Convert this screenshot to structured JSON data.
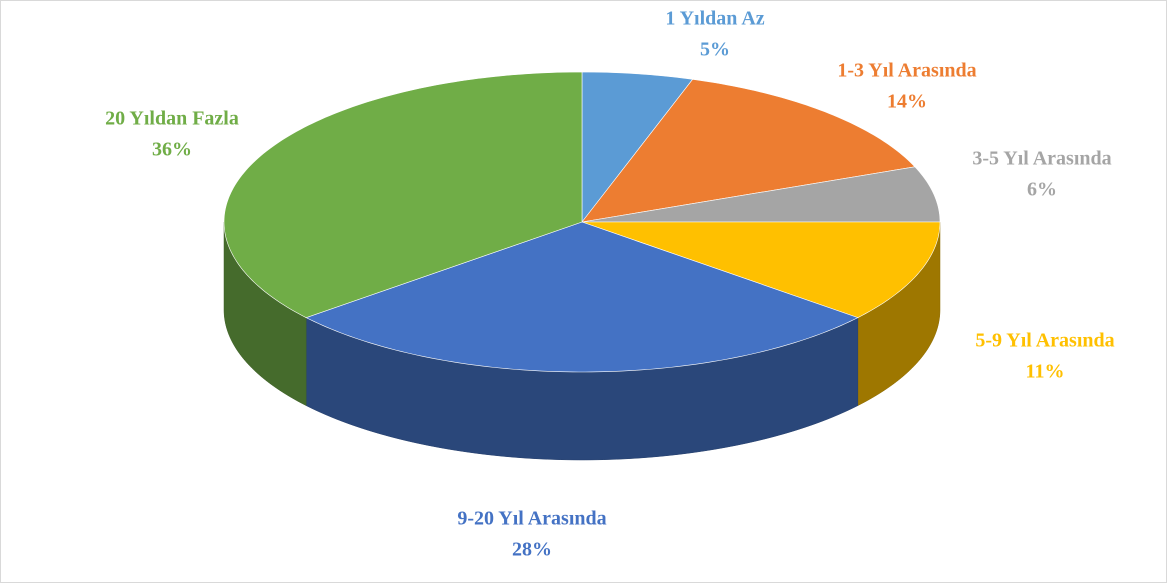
{
  "chart_data": {
    "type": "pie3d",
    "categories": [
      "1 Yıldan Az",
      "1-3 Yıl Arasında",
      "3-5 Yıl Arasında",
      "5-9 Yıl Arasında",
      "9-20 Yıl Arasında",
      "20 Yıldan Fazla"
    ],
    "values": [
      5,
      14,
      6,
      11,
      28,
      36
    ],
    "value_labels": [
      "5%",
      "14%",
      "6%",
      "11%",
      "28%",
      "36%"
    ],
    "colors": [
      "#5b9bd5",
      "#ed7d31",
      "#a5a5a5",
      "#ffc000",
      "#4472c4",
      "#70ad47"
    ]
  }
}
